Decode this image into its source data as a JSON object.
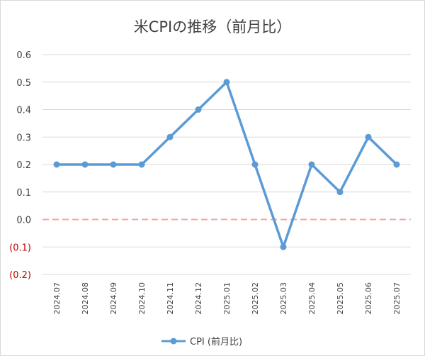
{
  "chart_data": {
    "type": "line",
    "title": "米CPIの推移（前月比）",
    "xlabel": "",
    "ylabel": "",
    "categories": [
      "2024.07",
      "2024.08",
      "2024.09",
      "2024.10",
      "2024.11",
      "2024.12",
      "2025.01",
      "2025.02",
      "2025.03",
      "2025.04",
      "2025.05",
      "2025.06",
      "2025.07"
    ],
    "series": [
      {
        "name": "CPI (前月比)",
        "color": "#5b9bd5",
        "values": [
          0.2,
          0.2,
          0.2,
          0.2,
          0.3,
          0.4,
          0.5,
          0.2,
          -0.1,
          0.2,
          0.1,
          0.3,
          0.2
        ]
      }
    ],
    "ylim": [
      -0.2,
      0.6
    ],
    "yticks": [
      {
        "value": 0.6,
        "label": "0.6",
        "color": "#404040"
      },
      {
        "value": 0.5,
        "label": "0.5",
        "color": "#404040"
      },
      {
        "value": 0.4,
        "label": "0.4",
        "color": "#404040"
      },
      {
        "value": 0.3,
        "label": "0.3",
        "color": "#404040"
      },
      {
        "value": 0.2,
        "label": "0.2",
        "color": "#404040"
      },
      {
        "value": 0.1,
        "label": "0.1",
        "color": "#404040"
      },
      {
        "value": 0.0,
        "label": "0.0",
        "color": "#404040"
      },
      {
        "value": -0.1,
        "label": "(0.1)",
        "color": "#c00000"
      },
      {
        "value": -0.2,
        "label": "(0.2)",
        "color": "#c00000"
      }
    ],
    "zero_line": {
      "value": 0.0,
      "color": "#f4a6a6",
      "style": "dashed"
    },
    "grid": true,
    "gridColor": "#d9d9d9",
    "legend": {
      "position": "bottom"
    }
  }
}
